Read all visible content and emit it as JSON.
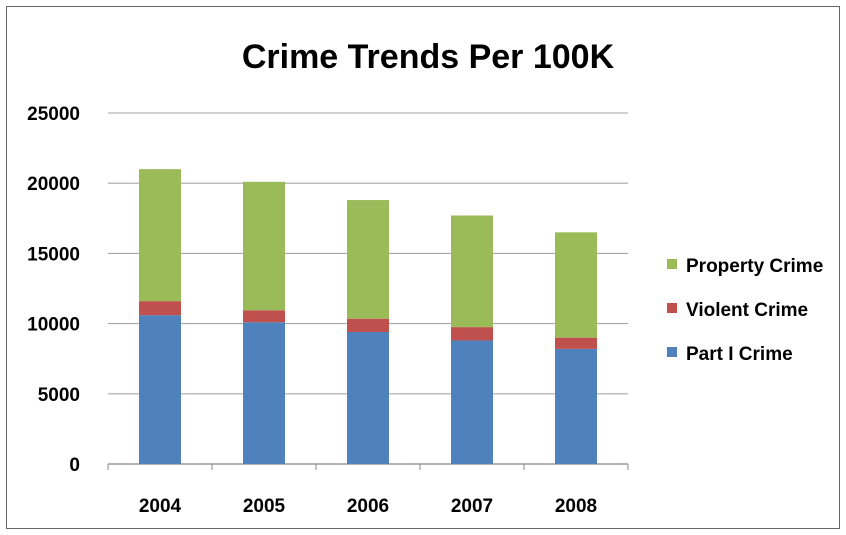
{
  "chart_data": {
    "type": "bar",
    "stacked": true,
    "title": "Crime Trends Per 100K",
    "xlabel": "",
    "ylabel": "",
    "categories": [
      "2004",
      "2005",
      "2006",
      "2007",
      "2008"
    ],
    "ylim": [
      0,
      25000
    ],
    "yticks": [
      "0",
      "5000",
      "10000",
      "15000",
      "20000",
      "25000"
    ],
    "grid": true,
    "legend_position": "right",
    "series": [
      {
        "name": "Part I Crime",
        "color": "#4f81bd",
        "values": [
          10600,
          10100,
          9400,
          8800,
          8200
        ]
      },
      {
        "name": "Violent Crime",
        "color": "#c0504d",
        "values": [
          1000,
          850,
          950,
          950,
          800
        ]
      },
      {
        "name": "Property Crime",
        "color": "#9bbb59",
        "values": [
          9400,
          9150,
          8450,
          7950,
          7500
        ]
      }
    ]
  }
}
